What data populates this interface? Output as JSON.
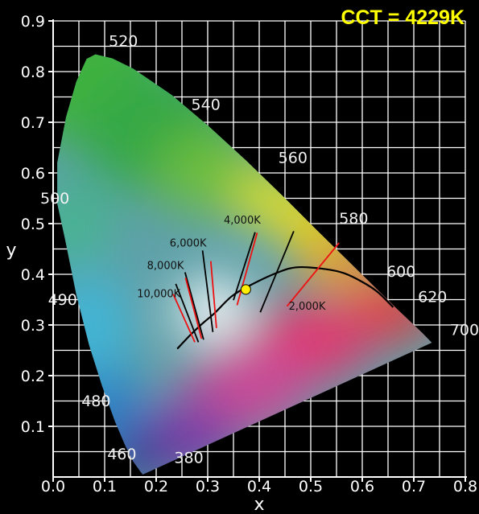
{
  "chart_data": {
    "type": "scatter",
    "title": "CCT = 4229K",
    "xlabel": "x",
    "ylabel": "y",
    "xlim": [
      0.0,
      0.8
    ],
    "ylim": [
      0.0,
      0.9
    ],
    "x_ticks": [
      "0.0",
      "0.1",
      "0.2",
      "0.3",
      "0.4",
      "0.5",
      "0.6",
      "0.7",
      "0.8"
    ],
    "y_ticks": [
      "0.1",
      "0.2",
      "0.3",
      "0.4",
      "0.5",
      "0.6",
      "0.7",
      "0.8",
      "0.9"
    ],
    "grid": true,
    "spectral_locus": [
      [
        0.174,
        0.005
      ],
      [
        0.17,
        0.01
      ],
      [
        0.156,
        0.03
      ],
      [
        0.141,
        0.06
      ],
      [
        0.12,
        0.11
      ],
      [
        0.095,
        0.18
      ],
      [
        0.07,
        0.26
      ],
      [
        0.045,
        0.36
      ],
      [
        0.023,
        0.47
      ],
      [
        0.008,
        0.54
      ],
      [
        0.008,
        0.62
      ],
      [
        0.025,
        0.71
      ],
      [
        0.045,
        0.78
      ],
      [
        0.065,
        0.825
      ],
      [
        0.082,
        0.834
      ],
      [
        0.115,
        0.826
      ],
      [
        0.155,
        0.806
      ],
      [
        0.23,
        0.754
      ],
      [
        0.302,
        0.692
      ],
      [
        0.374,
        0.625
      ],
      [
        0.445,
        0.555
      ],
      [
        0.512,
        0.487
      ],
      [
        0.575,
        0.424
      ],
      [
        0.627,
        0.372
      ],
      [
        0.665,
        0.334
      ],
      [
        0.692,
        0.308
      ],
      [
        0.716,
        0.285
      ],
      [
        0.735,
        0.265
      ]
    ],
    "wavelength_labels": [
      {
        "label": "380",
        "x": 0.235,
        "y": 0.028
      },
      {
        "label": "460",
        "x": 0.105,
        "y": 0.035
      },
      {
        "label": "480",
        "x": 0.055,
        "y": 0.14
      },
      {
        "label": "490",
        "x": -0.01,
        "y": 0.34
      },
      {
        "label": "500",
        "x": -0.025,
        "y": 0.54
      },
      {
        "label": "520",
        "x": 0.108,
        "y": 0.85
      },
      {
        "label": "540",
        "x": 0.268,
        "y": 0.725
      },
      {
        "label": "560",
        "x": 0.437,
        "y": 0.62
      },
      {
        "label": "580",
        "x": 0.555,
        "y": 0.5
      },
      {
        "label": "600",
        "x": 0.647,
        "y": 0.395
      },
      {
        "label": "620",
        "x": 0.708,
        "y": 0.345
      },
      {
        "label": "700",
        "x": 0.77,
        "y": 0.28
      }
    ],
    "planckian_locus": [
      [
        0.241,
        0.253
      ],
      [
        0.266,
        0.28
      ],
      [
        0.29,
        0.303
      ],
      [
        0.313,
        0.323
      ],
      [
        0.346,
        0.356
      ],
      [
        0.38,
        0.377
      ],
      [
        0.437,
        0.404
      ],
      [
        0.476,
        0.414
      ],
      [
        0.53,
        0.41
      ],
      [
        0.565,
        0.402
      ],
      [
        0.6,
        0.385
      ],
      [
        0.63,
        0.365
      ],
      [
        0.66,
        0.335
      ]
    ],
    "isotherms": [
      {
        "label": "10,000K",
        "label_pos": [
          0.205,
          0.355
        ],
        "black": [
          [
            0.238,
            0.381
          ],
          [
            0.282,
            0.266
          ]
        ],
        "red": [
          [
            0.233,
            0.361
          ],
          [
            0.275,
            0.266
          ]
        ]
      },
      {
        "label": "8,000K",
        "label_pos": [
          0.218,
          0.41
        ],
        "black": [
          [
            0.256,
            0.404
          ],
          [
            0.292,
            0.271
          ]
        ],
        "red": [
          [
            0.257,
            0.393
          ],
          [
            0.288,
            0.273
          ]
        ]
      },
      {
        "label": "6,000K",
        "label_pos": [
          0.262,
          0.455
        ],
        "black": [
          [
            0.29,
            0.447
          ],
          [
            0.31,
            0.286
          ]
        ],
        "red": [
          [
            0.306,
            0.426
          ],
          [
            0.317,
            0.294
          ]
        ]
      },
      {
        "label": "4,000K",
        "label_pos": [
          0.367,
          0.5
        ],
        "black": [
          [
            0.392,
            0.483
          ],
          [
            0.35,
            0.349
          ]
        ],
        "red": [
          [
            0.396,
            0.482
          ],
          [
            0.357,
            0.339
          ]
        ]
      },
      {
        "label": "2,000K",
        "label_pos": [
          0.493,
          0.33
        ],
        "black": [
          [
            0.467,
            0.485
          ],
          [
            0.402,
            0.325
          ]
        ],
        "red": [
          [
            0.555,
            0.462
          ],
          [
            0.454,
            0.337
          ]
        ]
      }
    ],
    "point": {
      "label": "CCT = 4229K",
      "x": 0.374,
      "y": 0.37,
      "color": "#ffee00"
    }
  }
}
